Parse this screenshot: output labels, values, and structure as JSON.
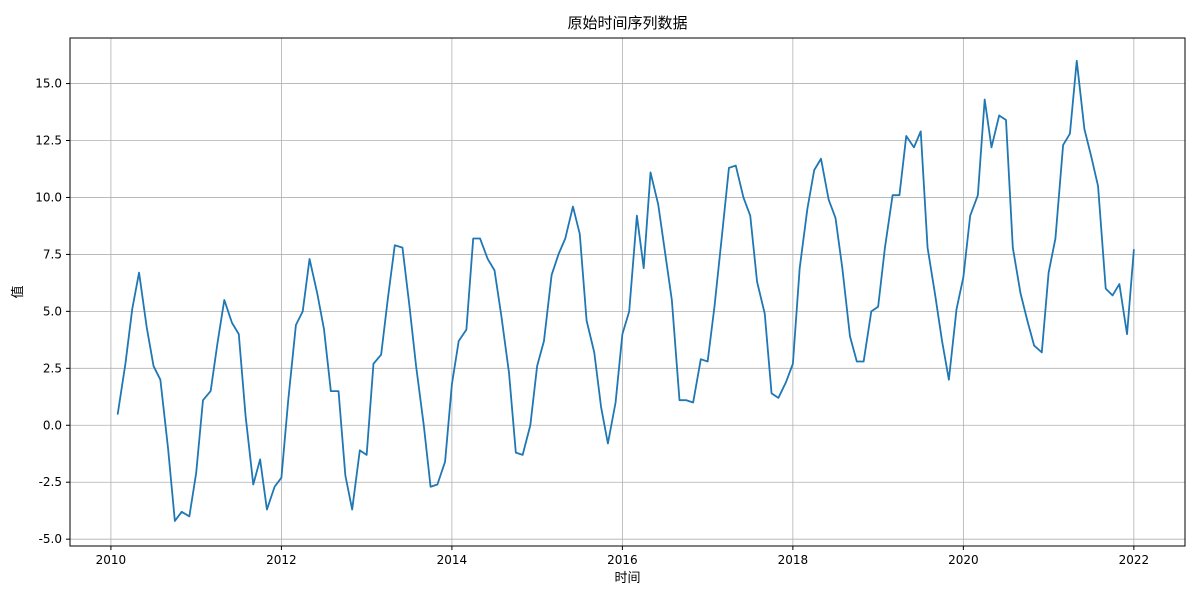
{
  "chart_data": {
    "type": "line",
    "title": "原始时间序列数据",
    "xlabel": "时间",
    "ylabel": "值",
    "xlim": [
      2009.52,
      2022.6
    ],
    "ylim": [
      -5.3,
      17.0
    ],
    "x_ticks": [
      2010,
      2012,
      2014,
      2016,
      2018,
      2020,
      2022
    ],
    "x_tick_labels": [
      "2010",
      "2012",
      "2014",
      "2016",
      "2018",
      "2020",
      "2022"
    ],
    "y_ticks": [
      -5.0,
      -2.5,
      0.0,
      2.5,
      5.0,
      7.5,
      10.0,
      12.5,
      15.0
    ],
    "y_tick_labels": [
      "-5.0",
      "-2.5",
      "0.0",
      "2.5",
      "5.0",
      "7.5",
      "10.0",
      "12.5",
      "15.0"
    ],
    "grid": true,
    "line_color": "#1f77b4",
    "series": [
      {
        "start": "2010-01",
        "x": [
          2010.08,
          2010.17,
          2010.25,
          2010.33,
          2010.42,
          2010.5,
          2010.58,
          2010.67,
          2010.75,
          2010.83,
          2010.92,
          2011.0,
          2011.08,
          2011.17,
          2011.25,
          2011.33,
          2011.42,
          2011.5,
          2011.58,
          2011.67,
          2011.75,
          2011.83,
          2011.92,
          2012.0,
          2012.08,
          2012.17,
          2012.25,
          2012.33,
          2012.42,
          2012.5,
          2012.58,
          2012.67,
          2012.75,
          2012.83,
          2012.92,
          2013.0,
          2013.08,
          2013.17,
          2013.25,
          2013.33,
          2013.42,
          2013.5,
          2013.58,
          2013.67,
          2013.75,
          2013.83,
          2013.92,
          2014.0,
          2014.08,
          2014.17,
          2014.25,
          2014.33,
          2014.42,
          2014.5,
          2014.58,
          2014.67,
          2014.75,
          2014.83,
          2014.92,
          2015.0,
          2015.08,
          2015.17,
          2015.25,
          2015.33,
          2015.42,
          2015.5,
          2015.58,
          2015.67,
          2015.75,
          2015.83,
          2015.92,
          2016.0,
          2016.08,
          2016.17,
          2016.25,
          2016.33,
          2016.42,
          2016.5,
          2016.58,
          2016.67,
          2016.75,
          2016.83,
          2016.92,
          2017.0,
          2017.08,
          2017.17,
          2017.25,
          2017.33,
          2017.42,
          2017.5,
          2017.58,
          2017.67,
          2017.75,
          2017.83,
          2017.92,
          2018.0,
          2018.08,
          2018.17,
          2018.25,
          2018.33,
          2018.42,
          2018.5,
          2018.58,
          2018.67,
          2018.75,
          2018.83,
          2018.92,
          2019.0,
          2019.08,
          2019.17,
          2019.25,
          2019.33,
          2019.42,
          2019.5,
          2019.58,
          2019.67,
          2019.75,
          2019.83,
          2019.92,
          2020.0,
          2020.08,
          2020.17,
          2020.25,
          2020.33,
          2020.42,
          2020.5,
          2020.58,
          2020.67,
          2020.75,
          2020.83,
          2020.92,
          2021.0,
          2021.08,
          2021.17,
          2021.25,
          2021.33,
          2021.42,
          2021.5,
          2021.58,
          2021.67,
          2021.75,
          2021.83,
          2021.92,
          2022.0
        ],
        "values": [
          0.5,
          2.7,
          5.1,
          6.7,
          4.3,
          2.6,
          2.0,
          -1.0,
          -4.2,
          -3.8,
          -4.0,
          -2.1,
          1.1,
          1.5,
          3.6,
          5.5,
          4.5,
          4.0,
          0.4,
          -2.6,
          -1.5,
          -3.7,
          -2.7,
          -2.3,
          1.1,
          4.4,
          5.0,
          7.3,
          5.8,
          4.2,
          1.5,
          1.5,
          -2.2,
          -3.7,
          -1.1,
          -1.3,
          2.7,
          3.1,
          5.6,
          7.9,
          7.8,
          5.3,
          2.6,
          0.0,
          -2.7,
          -2.6,
          -1.6,
          1.8,
          3.7,
          4.2,
          8.2,
          8.2,
          7.3,
          6.8,
          4.8,
          2.3,
          -1.2,
          -1.3,
          0.0,
          2.6,
          3.7,
          6.6,
          7.5,
          8.2,
          9.6,
          8.4,
          4.6,
          3.2,
          0.8,
          -0.8,
          1.0,
          4.0,
          5.0,
          9.2,
          6.9,
          11.1,
          9.7,
          7.6,
          5.5,
          1.1,
          1.1,
          1.0,
          2.9,
          2.8,
          5.2,
          8.4,
          11.3,
          11.4,
          10.0,
          9.2,
          6.3,
          4.9,
          1.4,
          1.2,
          1.9,
          2.7,
          6.9,
          9.5,
          11.2,
          11.7,
          9.9,
          9.1,
          6.9,
          3.9,
          2.8,
          2.8,
          5.0,
          5.2,
          7.8,
          10.1,
          10.1,
          12.7,
          12.2,
          12.9,
          7.8,
          5.7,
          3.7,
          2.0,
          5.1,
          6.5,
          9.2,
          10.1,
          14.3,
          12.2,
          13.6,
          13.4,
          7.8,
          5.8,
          4.6,
          3.5,
          3.2,
          6.7,
          8.2,
          12.3,
          12.8,
          16.0,
          13.0,
          11.8,
          10.5,
          6.0,
          5.7,
          6.2,
          4.0,
          7.7
        ]
      }
    ]
  }
}
